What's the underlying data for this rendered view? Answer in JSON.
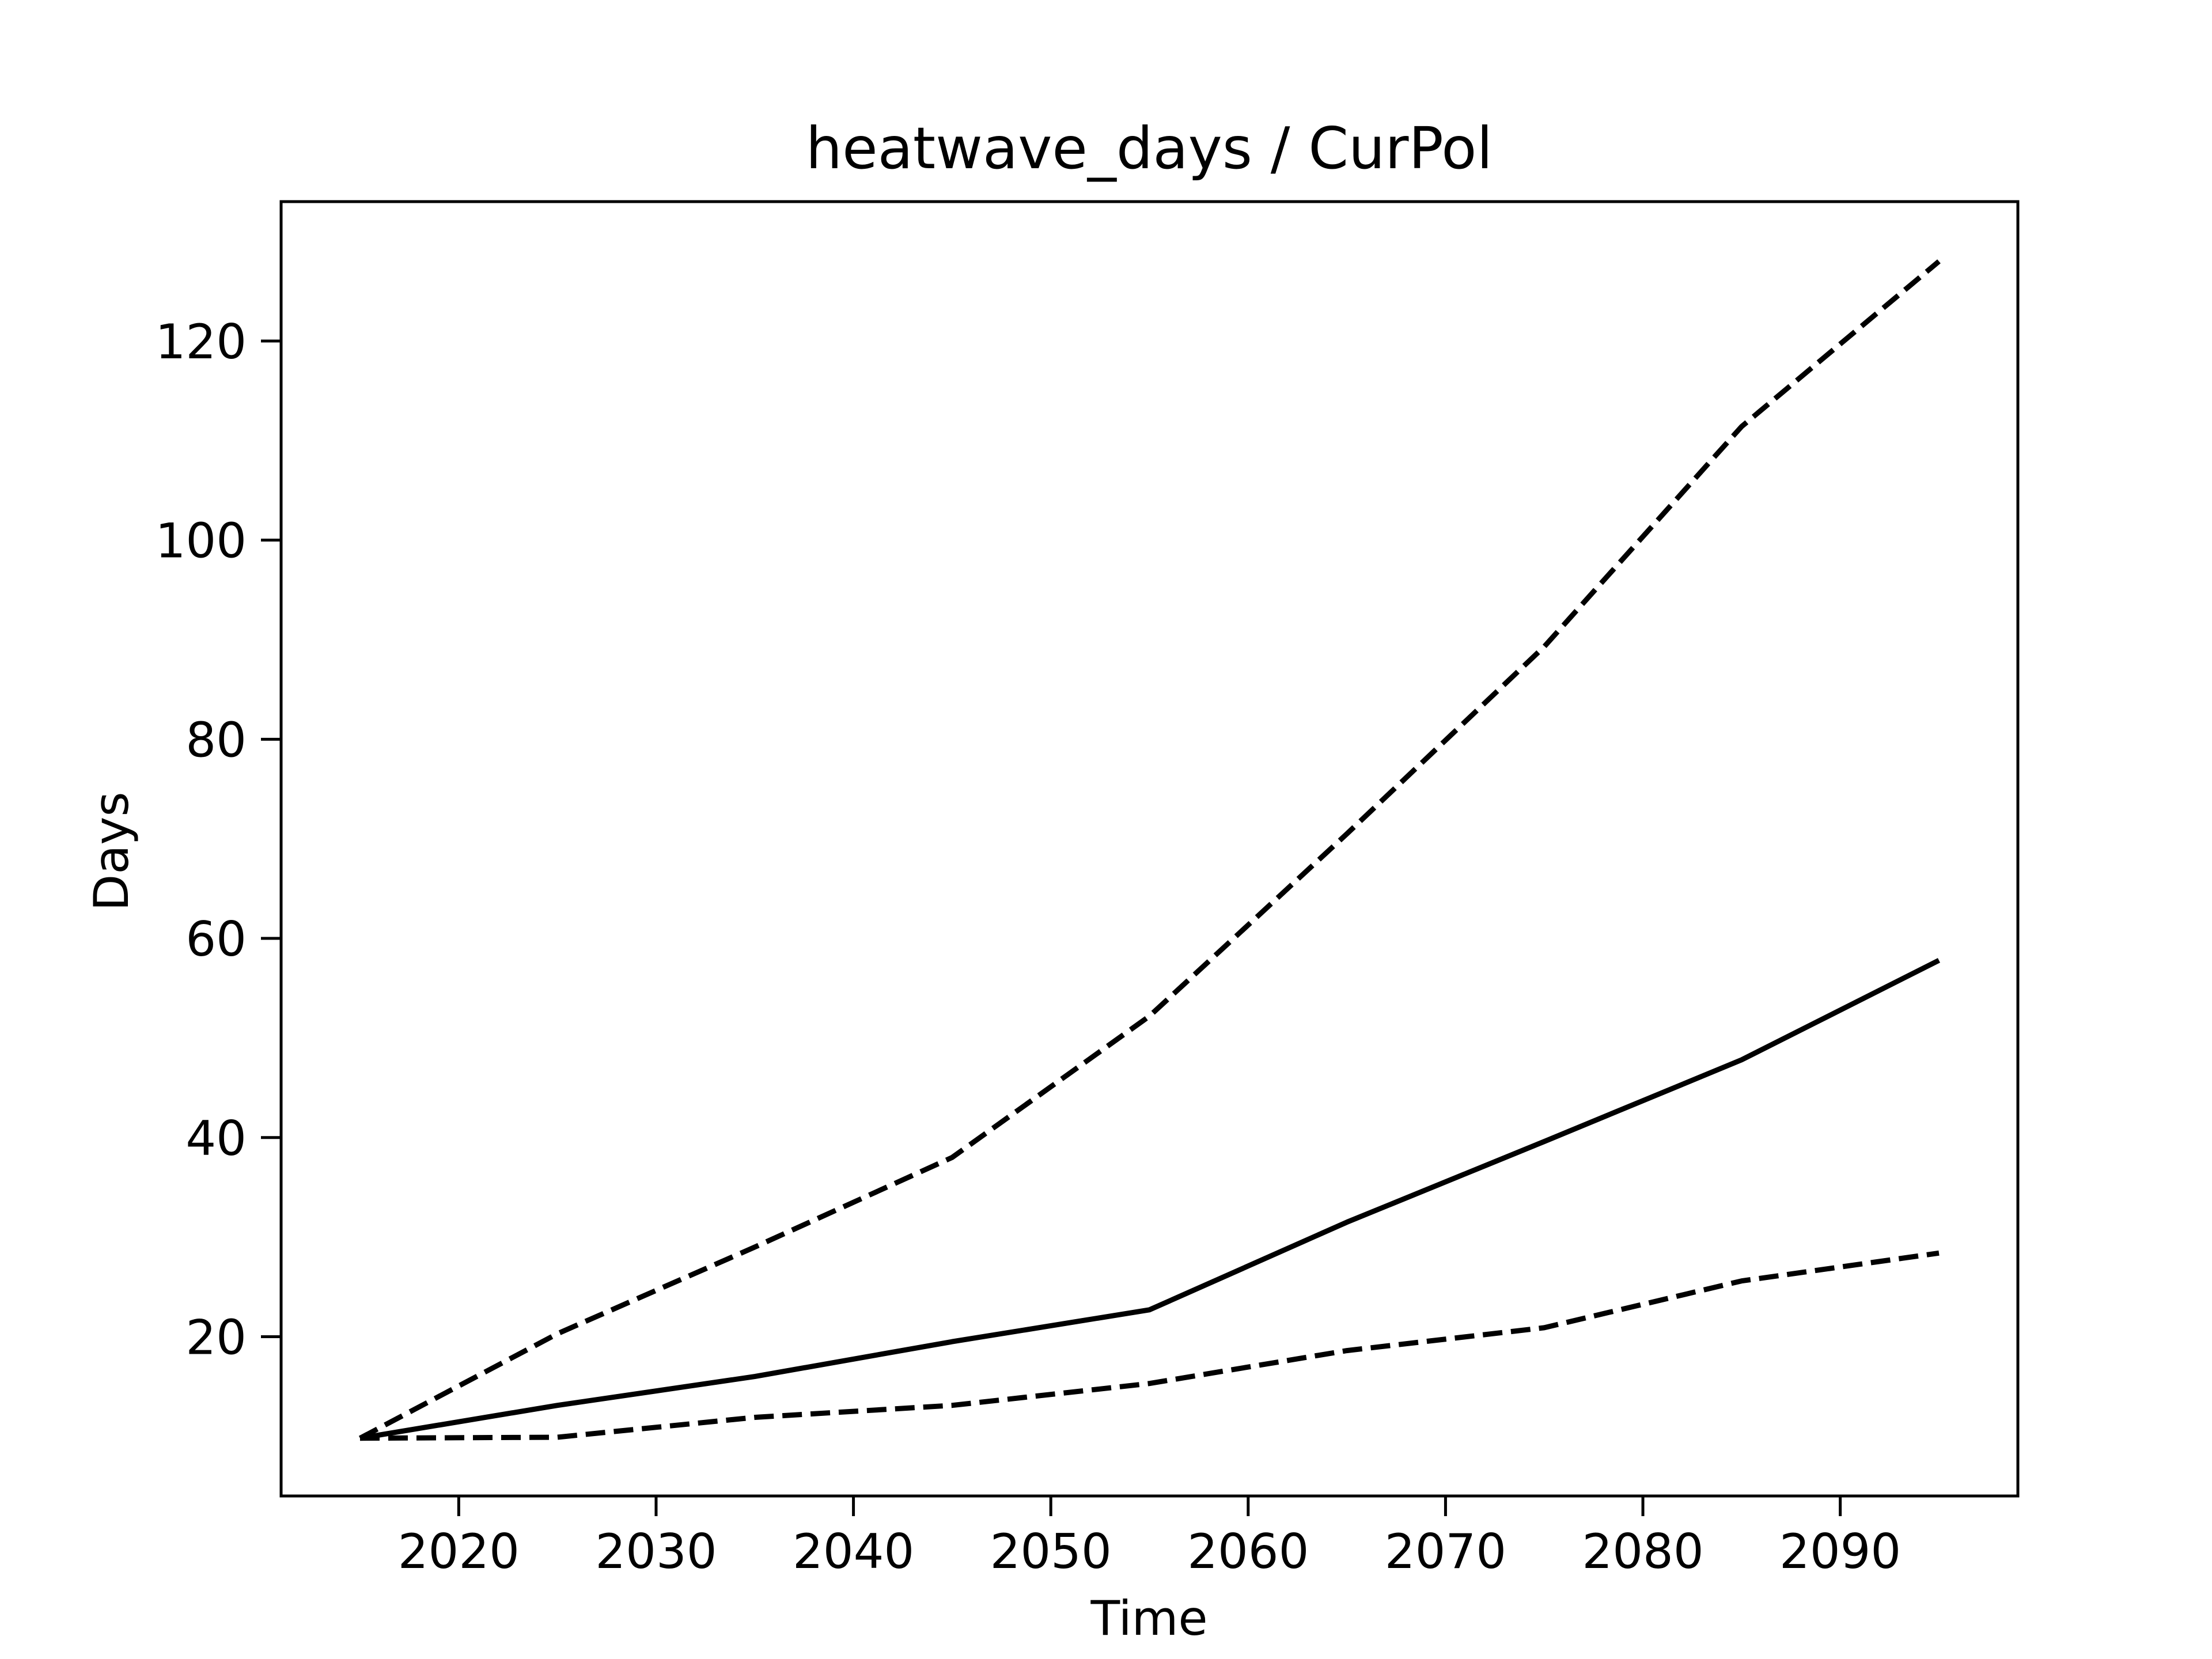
{
  "chart_data": {
    "type": "line",
    "title": "heatwave_days / CurPol",
    "xlabel": "Time",
    "ylabel": "Days",
    "xlim": [
      2011,
      2099
    ],
    "ylim": [
      4,
      134
    ],
    "xticks": [
      2020,
      2030,
      2040,
      2050,
      2060,
      2070,
      2080,
      2090
    ],
    "yticks": [
      20,
      40,
      60,
      80,
      100,
      120
    ],
    "grid": false,
    "legend": "none",
    "x": [
      2015,
      2025,
      2035,
      2045,
      2055,
      2065,
      2075,
      2085,
      2095
    ],
    "series": [
      {
        "style": "dashed",
        "color": "#000000",
        "values": [
          9.8,
          20.3,
          29.0,
          38.0,
          52.2,
          70.5,
          89.3,
          111.4,
          128.0
        ]
      },
      {
        "style": "solid",
        "color": "#000000",
        "values": [
          9.8,
          13.1,
          16.0,
          19.5,
          22.7,
          31.5,
          39.6,
          47.8,
          57.8
        ]
      },
      {
        "style": "dashed",
        "color": "#000000",
        "values": [
          9.8,
          9.9,
          11.9,
          13.1,
          15.3,
          18.6,
          20.9,
          25.6,
          28.4
        ]
      }
    ]
  }
}
